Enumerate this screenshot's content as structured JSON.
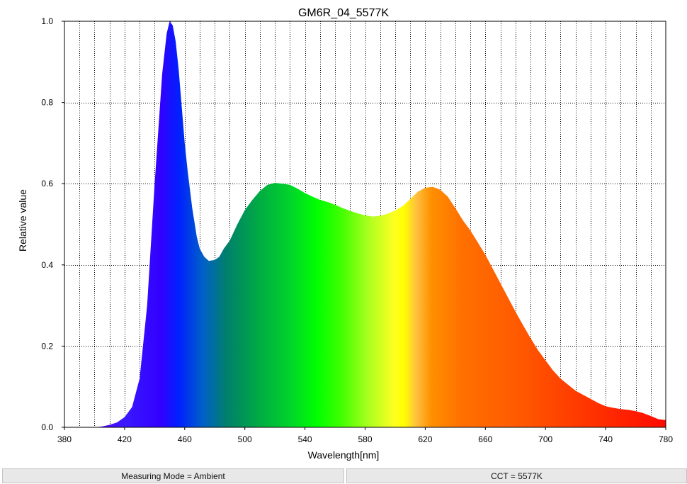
{
  "chart_data": {
    "type": "area",
    "title": "GM6R_04_5577K",
    "xlabel": "Wavelength[nm]",
    "ylabel": "Relative value",
    "xlim": [
      380,
      780
    ],
    "ylim": [
      0,
      1.0
    ],
    "x_ticks": [
      380,
      420,
      460,
      500,
      540,
      580,
      620,
      660,
      700,
      740,
      780
    ],
    "x_tick_labels": [
      "380",
      "420",
      "460",
      "500",
      "540",
      "580",
      "620",
      "660",
      "700",
      "740",
      "780"
    ],
    "y_ticks": [
      0.0,
      0.2,
      0.4,
      0.6,
      0.8,
      1.0
    ],
    "y_tick_labels": [
      "0.0",
      "0.2",
      "0.4",
      "0.6",
      "0.8",
      "1.0"
    ],
    "grid": true,
    "fill": "wavelength-spectrum",
    "series": [
      {
        "x": [
          400,
          405,
          410,
          415,
          420,
          425,
          430,
          435,
          440,
          445,
          448,
          450,
          452,
          454,
          456,
          458,
          460,
          462,
          465,
          468,
          470,
          473,
          476,
          480,
          483,
          486,
          490,
          495,
          500,
          505,
          510,
          515,
          520,
          525,
          530,
          535,
          540,
          545,
          550,
          555,
          560,
          565,
          570,
          575,
          580,
          585,
          590,
          595,
          600,
          605,
          610,
          615,
          620,
          625,
          630,
          635,
          640,
          645,
          650,
          655,
          660,
          665,
          670,
          675,
          680,
          685,
          690,
          695,
          700,
          705,
          710,
          715,
          720,
          725,
          730,
          735,
          740,
          745,
          750,
          755,
          760,
          765,
          770,
          775,
          780
        ],
        "values": [
          0.0,
          0.002,
          0.006,
          0.012,
          0.025,
          0.05,
          0.12,
          0.3,
          0.6,
          0.87,
          0.97,
          1.0,
          0.99,
          0.95,
          0.88,
          0.79,
          0.7,
          0.63,
          0.54,
          0.47,
          0.44,
          0.42,
          0.41,
          0.412,
          0.42,
          0.44,
          0.46,
          0.5,
          0.535,
          0.56,
          0.582,
          0.597,
          0.602,
          0.6,
          0.597,
          0.588,
          0.577,
          0.568,
          0.56,
          0.555,
          0.548,
          0.54,
          0.533,
          0.527,
          0.522,
          0.519,
          0.521,
          0.526,
          0.534,
          0.545,
          0.562,
          0.58,
          0.59,
          0.592,
          0.585,
          0.568,
          0.54,
          0.51,
          0.485,
          0.455,
          0.425,
          0.39,
          0.355,
          0.32,
          0.285,
          0.252,
          0.22,
          0.19,
          0.165,
          0.14,
          0.12,
          0.105,
          0.09,
          0.08,
          0.07,
          0.06,
          0.052,
          0.048,
          0.045,
          0.043,
          0.04,
          0.035,
          0.028,
          0.02,
          0.018
        ]
      }
    ]
  },
  "status": {
    "measuring_mode": "Measuring Mode = Ambient",
    "cct": "CCT = 5577K"
  }
}
